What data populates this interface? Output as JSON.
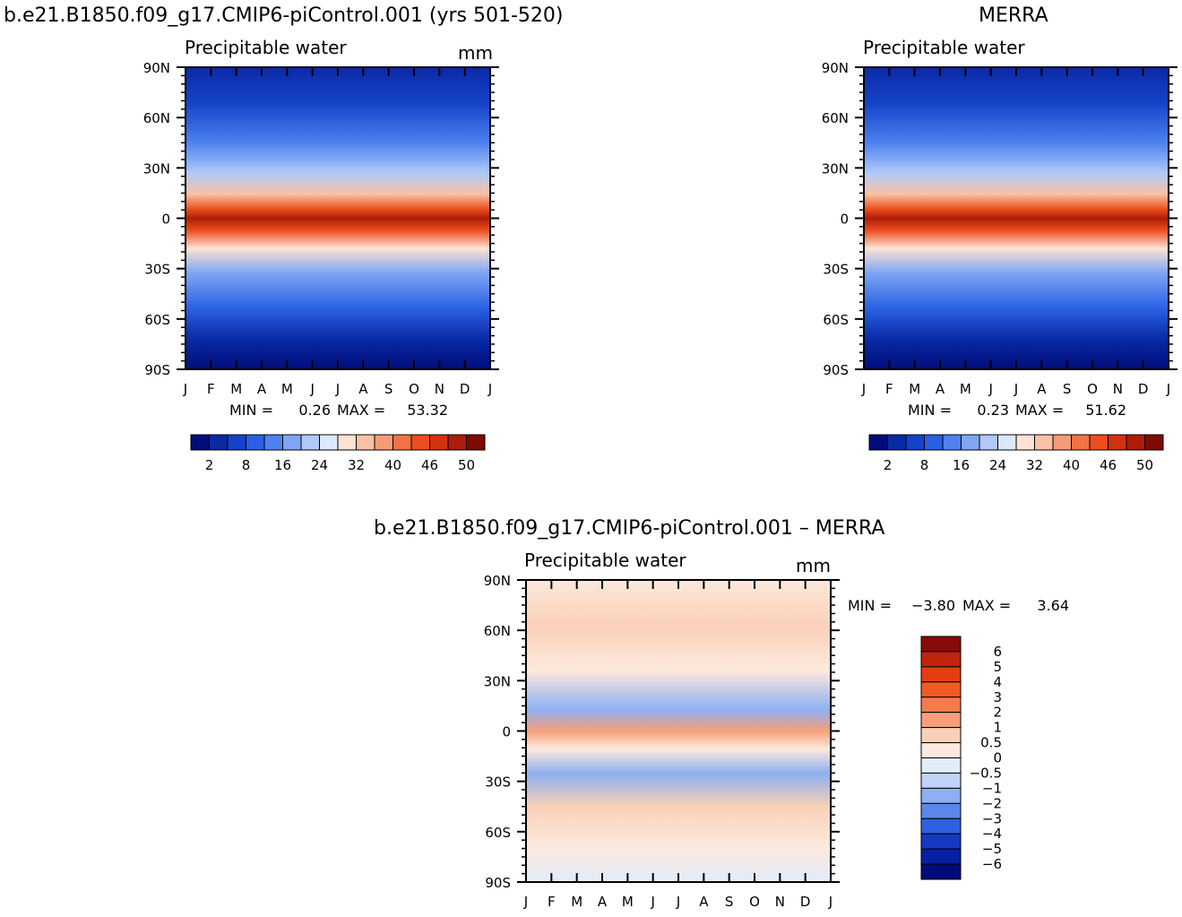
{
  "chart_data": [
    {
      "type": "heatmap",
      "title": "b.e21.B1850.f09_g17.CMIP6-piControl.001 (yrs 501-520)",
      "subtitle": "Precipitable water",
      "units": "mm",
      "x_ticks": [
        "J",
        "F",
        "M",
        "A",
        "M",
        "J",
        "J",
        "A",
        "S",
        "O",
        "N",
        "D",
        "J"
      ],
      "y_ticks": [
        "90N",
        "60N",
        "30N",
        "0",
        "30S",
        "60S",
        "90S"
      ],
      "stats": {
        "min_label": "MIN =",
        "min": "0.26",
        "max_label": "MAX =",
        "max": "53.32"
      },
      "colorbar": {
        "labels": [
          "2",
          "8",
          "16",
          "24",
          "32",
          "40",
          "46",
          "50"
        ],
        "colors": [
          "#000d7a",
          "#0a2aa6",
          "#1543c8",
          "#2960e3",
          "#4d82ef",
          "#7fa6f5",
          "#b0c9f8",
          "#dde9fb",
          "#fde3d4",
          "#f9c1a5",
          "#f59b78",
          "#f17447",
          "#ec4e1e",
          "#d2330f",
          "#ad1d07",
          "#7f0b02"
        ]
      }
    },
    {
      "type": "heatmap",
      "title": "MERRA",
      "subtitle": "Precipitable water",
      "units": "",
      "x_ticks": [
        "J",
        "F",
        "M",
        "A",
        "M",
        "J",
        "J",
        "A",
        "S",
        "O",
        "N",
        "D",
        "J"
      ],
      "y_ticks": [
        "90N",
        "60N",
        "30N",
        "0",
        "30S",
        "60S",
        "90S"
      ],
      "stats": {
        "min_label": "MIN =",
        "min": "0.23",
        "max_label": "MAX =",
        "max": "51.62"
      },
      "colorbar": {
        "labels": [
          "2",
          "8",
          "16",
          "24",
          "32",
          "40",
          "46",
          "50"
        ],
        "colors": [
          "#000d7a",
          "#0a2aa6",
          "#1543c8",
          "#2960e3",
          "#4d82ef",
          "#7fa6f5",
          "#b0c9f8",
          "#dde9fb",
          "#fde3d4",
          "#f9c1a5",
          "#f59b78",
          "#f17447",
          "#ec4e1e",
          "#d2330f",
          "#ad1d07",
          "#7f0b02"
        ]
      }
    },
    {
      "type": "heatmap",
      "title": "b.e21.B1850.f09_g17.CMIP6-piControl.001 – MERRA",
      "subtitle": "Precipitable water",
      "units": "mm",
      "x_ticks": [
        "J",
        "F",
        "M",
        "A",
        "M",
        "J",
        "J",
        "A",
        "S",
        "O",
        "N",
        "D",
        "J"
      ],
      "y_ticks": [
        "90N",
        "60N",
        "30N",
        "0",
        "30S",
        "60S",
        "90S"
      ],
      "stats": {
        "min_label": "MIN =",
        "min": "−3.80",
        "max_label": "MAX =",
        "max": "3.64"
      },
      "colorbar": {
        "labels": [
          "6",
          "5",
          "4",
          "3",
          "2",
          "1",
          "0.5",
          "0",
          "−0.5",
          "−1",
          "−2",
          "−3",
          "−4",
          "−5",
          "−6"
        ],
        "colors": [
          "#870b06",
          "#c0240b",
          "#e43d12",
          "#f15a26",
          "#f47c4c",
          "#f6a07b",
          "#fad0b8",
          "#fde9dc",
          "#e2ecfa",
          "#bfd4f6",
          "#8eb0f2",
          "#5b87ea",
          "#2f5fde",
          "#1539c2",
          "#0720a0",
          "#000a78"
        ]
      }
    }
  ]
}
